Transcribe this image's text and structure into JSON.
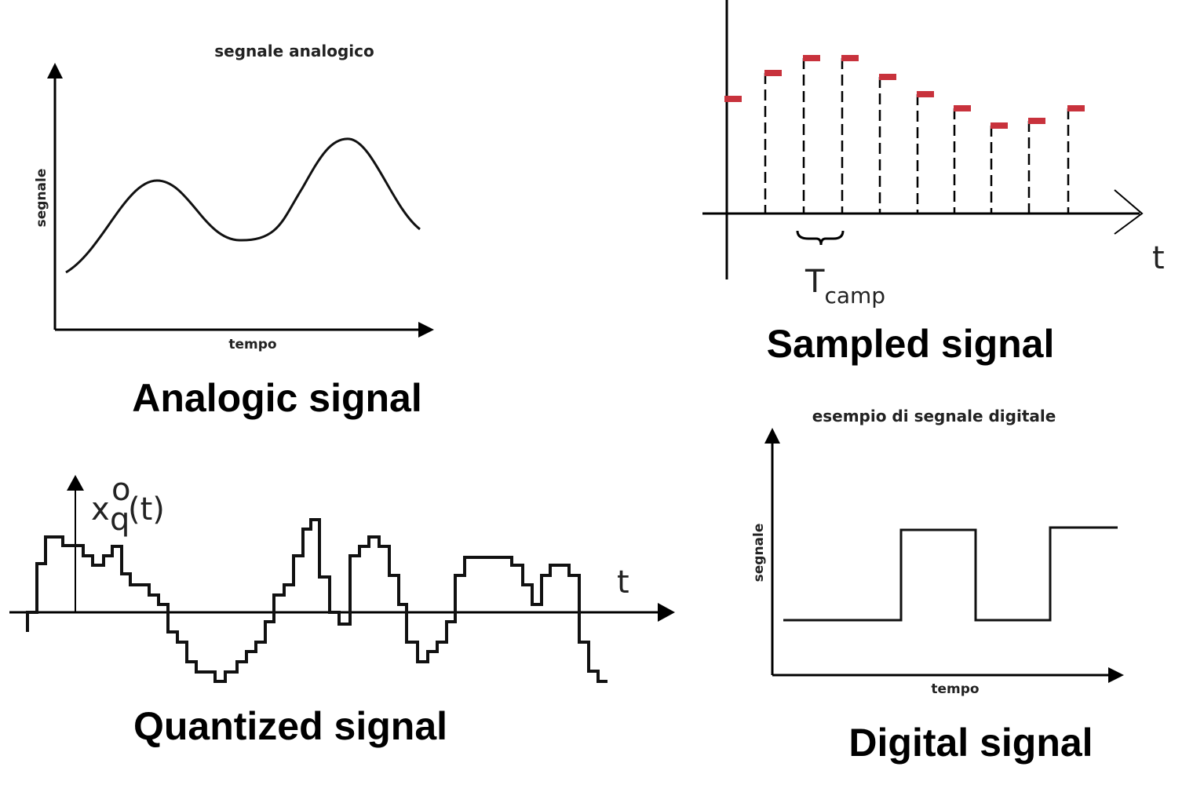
{
  "analog": {
    "caption": "Analogic signal",
    "title": "segnale analogico",
    "xlabel": "tempo",
    "ylabel": "segnale"
  },
  "sampled": {
    "caption": "Sampled signal",
    "t_label": "t",
    "period_label_main": "T",
    "period_label_sub": "camp",
    "sample_color": "#c8323c"
  },
  "quantized": {
    "caption": "Quantized signal",
    "y_label_main": "x",
    "y_label_sup": "o",
    "y_label_sub": "q",
    "y_label_arg": "(t)",
    "t_label": "t"
  },
  "digital": {
    "caption": "Digital signal",
    "title": "esempio di segnale digitale",
    "xlabel": "tempo",
    "ylabel": "segnale"
  }
}
